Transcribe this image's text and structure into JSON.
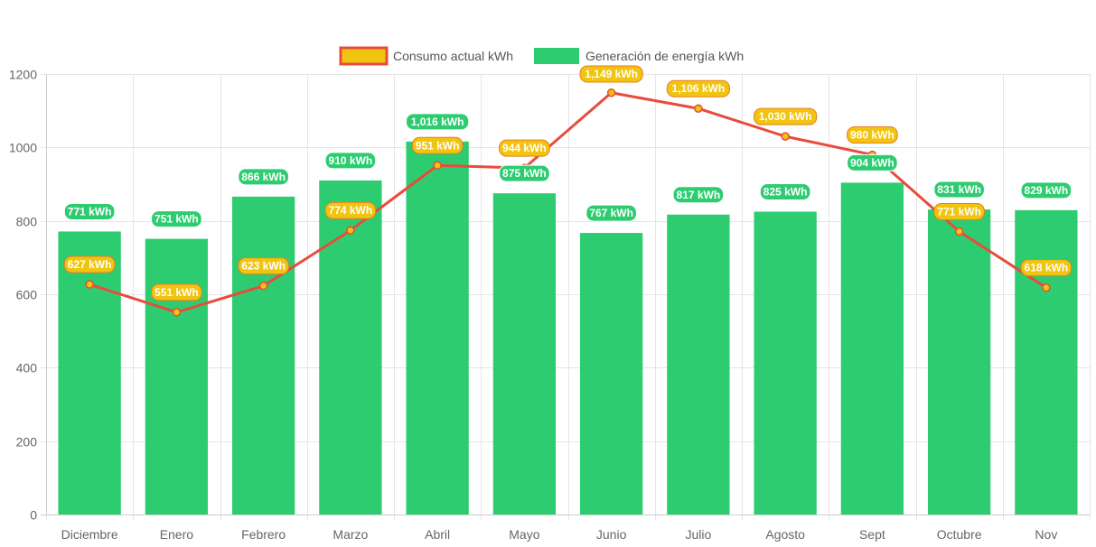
{
  "chart_data": {
    "type": "bar",
    "title": "",
    "xlabel": "",
    "ylabel": "",
    "ylim": [
      0,
      1200
    ],
    "yticks": [
      0,
      200,
      400,
      600,
      800,
      1000,
      1200
    ],
    "grid": true,
    "legend_position": "top-center",
    "categories": [
      "Diciembre",
      "Enero",
      "Febrero",
      "Marzo",
      "Abril",
      "Mayo",
      "Junio",
      "Julio",
      "Agosto",
      "Sept",
      "Octubre",
      "Nov"
    ],
    "series": [
      {
        "name": "Consumo actual kWh",
        "type": "line",
        "color": "#e74c3c",
        "point_color": "#f1c40f",
        "values": [
          627,
          551,
          623,
          774,
          951,
          944,
          1149,
          1106,
          1030,
          980,
          771,
          618
        ],
        "labels": [
          "627 kWh",
          "551 kWh",
          "623 kWh",
          "774 kWh",
          "951 kWh",
          "944 kWh",
          "1,149 kWh",
          "1,106 kWh",
          "1,030 kWh",
          "980 kWh",
          "771 kWh",
          "618 kWh"
        ]
      },
      {
        "name": "Generación de energía kWh",
        "type": "bar",
        "color": "#2ecc71",
        "values": [
          771,
          751,
          866,
          910,
          1016,
          875,
          767,
          817,
          825,
          904,
          831,
          829
        ],
        "labels": [
          "771 kWh",
          "751 kWh",
          "866 kWh",
          "910 kWh",
          "1,016 kWh",
          "875 kWh",
          "767 kWh",
          "817 kWh",
          "825 kWh",
          "904 kWh",
          "831 kWh",
          "829 kWh"
        ]
      }
    ]
  }
}
